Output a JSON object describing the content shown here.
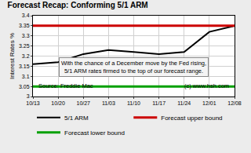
{
  "chart_data": {
    "type": "line",
    "title": "Forecast Recap: Conforming 5/1 ARM",
    "y_label": "Interest Rates %",
    "categories": [
      "10/13",
      "10/20",
      "10/27",
      "11/03",
      "11/10",
      "11/17",
      "11/24",
      "12/01",
      "12/08"
    ],
    "series": [
      {
        "name": "5/1 ARM",
        "color": "#000000",
        "values": [
          3.16,
          3.17,
          3.21,
          3.23,
          3.22,
          3.21,
          3.22,
          3.32,
          3.35
        ]
      },
      {
        "name": "Forecast upper bound",
        "color": "#cc0000",
        "values": [
          3.35,
          3.35,
          3.35,
          3.35,
          3.35,
          3.35,
          3.35,
          3.35,
          3.35
        ]
      },
      {
        "name": "Forecast lower bound",
        "color": "#00a000",
        "values": [
          3.05,
          3.05,
          3.05,
          3.05,
          3.05,
          3.05,
          3.05,
          3.05,
          3.05
        ]
      }
    ],
    "ylim": [
      3,
      3.4
    ],
    "yticks": [
      3,
      3.05,
      3.1,
      3.15,
      3.2,
      3.25,
      3.3,
      3.35,
      3.4
    ],
    "grid": true,
    "legend": "bottom",
    "annotations": {
      "note": [
        "With the chance of a December move by the Fed rising,",
        "5/1 ARM rates firmed to the top of our forecast range."
      ],
      "source": "Source: Freddie Mac",
      "copyright": "(c) www.hsh.com"
    }
  }
}
